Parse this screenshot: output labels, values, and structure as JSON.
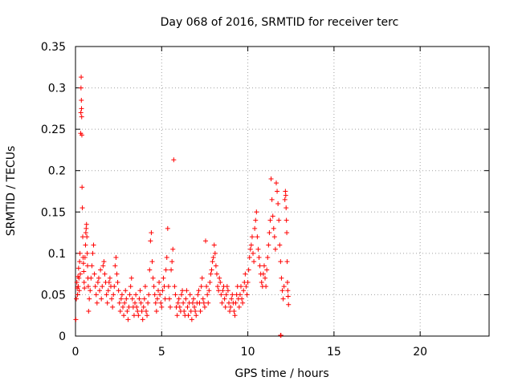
{
  "chart_data": {
    "type": "scatter",
    "title": "Day 068 of 2016, SRMTID for receiver terc",
    "xlabel": "GPS time / hours",
    "ylabel": "SRMTID / TECUs",
    "xlim": [
      0,
      24
    ],
    "ylim": [
      0,
      0.35
    ],
    "grid": true,
    "x_ticks": [
      0,
      5,
      10,
      15,
      20
    ],
    "x_tick_labels": [
      "0",
      "5",
      "10",
      "15",
      "20"
    ],
    "y_ticks": [
      0,
      0.05,
      0.1,
      0.15,
      0.2,
      0.25,
      0.3,
      0.35
    ],
    "y_tick_labels": [
      "0",
      "0.05",
      "0.1",
      "0.15",
      "0.2",
      "0.25",
      "0.3",
      "0.35"
    ],
    "marker": "+",
    "series": [
      {
        "name": "SRMTID",
        "color": "#ff0000",
        "points": [
          [
            0.02,
            0.02
          ],
          [
            0.05,
            0.045
          ],
          [
            0.08,
            0.065
          ],
          [
            0.1,
            0.058
          ],
          [
            0.12,
            0.05
          ],
          [
            0.14,
            0.072
          ],
          [
            0.16,
            0.06
          ],
          [
            0.18,
            0.082
          ],
          [
            0.2,
            0.07
          ],
          [
            0.22,
            0.055
          ],
          [
            0.24,
            0.09
          ],
          [
            0.26,
            0.1
          ],
          [
            0.28,
            0.075
          ],
          [
            0.3,
            0.245
          ],
          [
            0.31,
            0.27
          ],
          [
            0.32,
            0.3
          ],
          [
            0.33,
            0.313
          ],
          [
            0.34,
            0.285
          ],
          [
            0.35,
            0.275
          ],
          [
            0.36,
            0.265
          ],
          [
            0.37,
            0.243
          ],
          [
            0.38,
            0.18
          ],
          [
            0.4,
            0.155
          ],
          [
            0.42,
            0.12
          ],
          [
            0.44,
            0.095
          ],
          [
            0.46,
            0.088
          ],
          [
            0.48,
            0.078
          ],
          [
            0.5,
            0.065
          ],
          [
            0.52,
            0.058
          ],
          [
            0.55,
            0.095
          ],
          [
            0.58,
            0.11
          ],
          [
            0.6,
            0.125
          ],
          [
            0.62,
            0.13
          ],
          [
            0.64,
            0.135
          ],
          [
            0.66,
            0.12
          ],
          [
            0.68,
            0.1
          ],
          [
            0.7,
            0.085
          ],
          [
            0.72,
            0.07
          ],
          [
            0.74,
            0.06
          ],
          [
            0.76,
            0.03
          ],
          [
            0.8,
            0.045
          ],
          [
            0.85,
            0.055
          ],
          [
            0.9,
            0.07
          ],
          [
            0.95,
            0.085
          ],
          [
            1.0,
            0.1
          ],
          [
            1.05,
            0.11
          ],
          [
            1.1,
            0.075
          ],
          [
            1.15,
            0.06
          ],
          [
            1.2,
            0.05
          ],
          [
            1.25,
            0.04
          ],
          [
            1.3,
            0.065
          ],
          [
            1.35,
            0.07
          ],
          [
            1.4,
            0.055
          ],
          [
            1.45,
            0.08
          ],
          [
            1.5,
            0.045
          ],
          [
            1.55,
            0.06
          ],
          [
            1.6,
            0.085
          ],
          [
            1.65,
            0.09
          ],
          [
            1.7,
            0.075
          ],
          [
            1.75,
            0.065
          ],
          [
            1.8,
            0.05
          ],
          [
            1.85,
            0.04
          ],
          [
            1.9,
            0.055
          ],
          [
            1.95,
            0.065
          ],
          [
            2.0,
            0.07
          ],
          [
            2.05,
            0.06
          ],
          [
            2.1,
            0.045
          ],
          [
            2.15,
            0.035
          ],
          [
            2.2,
            0.05
          ],
          [
            2.25,
            0.06
          ],
          [
            2.3,
            0.085
          ],
          [
            2.35,
            0.095
          ],
          [
            2.4,
            0.075
          ],
          [
            2.45,
            0.065
          ],
          [
            2.5,
            0.055
          ],
          [
            2.55,
            0.04
          ],
          [
            2.6,
            0.03
          ],
          [
            2.65,
            0.045
          ],
          [
            2.7,
            0.05
          ],
          [
            2.75,
            0.035
          ],
          [
            2.8,
            0.025
          ],
          [
            2.85,
            0.04
          ],
          [
            2.9,
            0.055
          ],
          [
            2.95,
            0.045
          ],
          [
            3.0,
            0.03
          ],
          [
            3.05,
            0.02
          ],
          [
            3.1,
            0.035
          ],
          [
            3.15,
            0.05
          ],
          [
            3.2,
            0.06
          ],
          [
            3.25,
            0.07
          ],
          [
            3.3,
            0.045
          ],
          [
            3.35,
            0.035
          ],
          [
            3.4,
            0.025
          ],
          [
            3.45,
            0.04
          ],
          [
            3.5,
            0.05
          ],
          [
            3.55,
            0.035
          ],
          [
            3.6,
            0.03
          ],
          [
            3.65,
            0.025
          ],
          [
            3.7,
            0.045
          ],
          [
            3.75,
            0.055
          ],
          [
            3.8,
            0.04
          ],
          [
            3.85,
            0.03
          ],
          [
            3.9,
            0.02
          ],
          [
            3.95,
            0.035
          ],
          [
            4.0,
            0.045
          ],
          [
            4.05,
            0.06
          ],
          [
            4.1,
            0.03
          ],
          [
            4.15,
            0.025
          ],
          [
            4.2,
            0.04
          ],
          [
            4.25,
            0.05
          ],
          [
            4.3,
            0.08
          ],
          [
            4.35,
            0.115
          ],
          [
            4.4,
            0.125
          ],
          [
            4.45,
            0.09
          ],
          [
            4.5,
            0.07
          ],
          [
            4.55,
            0.06
          ],
          [
            4.6,
            0.05
          ],
          [
            4.65,
            0.04
          ],
          [
            4.7,
            0.03
          ],
          [
            4.75,
            0.045
          ],
          [
            4.8,
            0.055
          ],
          [
            4.85,
            0.065
          ],
          [
            4.9,
            0.05
          ],
          [
            4.95,
            0.04
          ],
          [
            5.0,
            0.035
          ],
          [
            5.05,
            0.055
          ],
          [
            5.1,
            0.07
          ],
          [
            5.15,
            0.06
          ],
          [
            5.2,
            0.045
          ],
          [
            5.25,
            0.08
          ],
          [
            5.3,
            0.095
          ],
          [
            5.35,
            0.13
          ],
          [
            5.4,
            0.06
          ],
          [
            5.45,
            0.045
          ],
          [
            5.5,
            0.035
          ],
          [
            5.55,
            0.08
          ],
          [
            5.6,
            0.09
          ],
          [
            5.65,
            0.105
          ],
          [
            5.7,
            0.213
          ],
          [
            5.75,
            0.06
          ],
          [
            5.8,
            0.05
          ],
          [
            5.85,
            0.035
          ],
          [
            5.9,
            0.025
          ],
          [
            5.95,
            0.04
          ],
          [
            6.0,
            0.045
          ],
          [
            6.05,
            0.035
          ],
          [
            6.1,
            0.03
          ],
          [
            6.15,
            0.05
          ],
          [
            6.2,
            0.055
          ],
          [
            6.25,
            0.04
          ],
          [
            6.3,
            0.03
          ],
          [
            6.35,
            0.025
          ],
          [
            6.4,
            0.045
          ],
          [
            6.45,
            0.055
          ],
          [
            6.5,
            0.035
          ],
          [
            6.55,
            0.025
          ],
          [
            6.6,
            0.04
          ],
          [
            6.65,
            0.05
          ],
          [
            6.7,
            0.03
          ],
          [
            6.75,
            0.02
          ],
          [
            6.8,
            0.04
          ],
          [
            6.85,
            0.045
          ],
          [
            6.9,
            0.035
          ],
          [
            6.95,
            0.03
          ],
          [
            7.0,
            0.025
          ],
          [
            7.05,
            0.04
          ],
          [
            7.1,
            0.05
          ],
          [
            7.15,
            0.055
          ],
          [
            7.2,
            0.04
          ],
          [
            7.25,
            0.03
          ],
          [
            7.3,
            0.06
          ],
          [
            7.35,
            0.07
          ],
          [
            7.4,
            0.045
          ],
          [
            7.45,
            0.04
          ],
          [
            7.5,
            0.035
          ],
          [
            7.55,
            0.115
          ],
          [
            7.6,
            0.06
          ],
          [
            7.65,
            0.05
          ],
          [
            7.7,
            0.04
          ],
          [
            7.75,
            0.055
          ],
          [
            7.8,
            0.065
          ],
          [
            7.85,
            0.075
          ],
          [
            7.9,
            0.08
          ],
          [
            7.95,
            0.09
          ],
          [
            8.0,
            0.095
          ],
          [
            8.05,
            0.11
          ],
          [
            8.1,
            0.1
          ],
          [
            8.15,
            0.085
          ],
          [
            8.2,
            0.075
          ],
          [
            8.25,
            0.06
          ],
          [
            8.3,
            0.055
          ],
          [
            8.35,
            0.07
          ],
          [
            8.4,
            0.065
          ],
          [
            8.45,
            0.05
          ],
          [
            8.5,
            0.04
          ],
          [
            8.55,
            0.055
          ],
          [
            8.6,
            0.06
          ],
          [
            8.65,
            0.045
          ],
          [
            8.7,
            0.035
          ],
          [
            8.75,
            0.05
          ],
          [
            8.8,
            0.06
          ],
          [
            8.85,
            0.055
          ],
          [
            8.9,
            0.04
          ],
          [
            8.95,
            0.03
          ],
          [
            9.0,
            0.035
          ],
          [
            9.05,
            0.045
          ],
          [
            9.1,
            0.05
          ],
          [
            9.15,
            0.04
          ],
          [
            9.2,
            0.03
          ],
          [
            9.25,
            0.025
          ],
          [
            9.3,
            0.04
          ],
          [
            9.35,
            0.05
          ],
          [
            9.4,
            0.06
          ],
          [
            9.45,
            0.045
          ],
          [
            9.5,
            0.035
          ],
          [
            9.55,
            0.05
          ],
          [
            9.6,
            0.06
          ],
          [
            9.65,
            0.045
          ],
          [
            9.7,
            0.04
          ],
          [
            9.75,
            0.055
          ],
          [
            9.8,
            0.065
          ],
          [
            9.85,
            0.075
          ],
          [
            9.9,
            0.06
          ],
          [
            9.95,
            0.05
          ],
          [
            10.0,
            0.065
          ],
          [
            10.05,
            0.08
          ],
          [
            10.1,
            0.095
          ],
          [
            10.15,
            0.105
          ],
          [
            10.2,
            0.11
          ],
          [
            10.25,
            0.12
          ],
          [
            10.3,
            0.1
          ],
          [
            10.35,
            0.09
          ],
          [
            10.4,
            0.13
          ],
          [
            10.45,
            0.14
          ],
          [
            10.5,
            0.15
          ],
          [
            10.55,
            0.12
          ],
          [
            10.6,
            0.105
          ],
          [
            10.65,
            0.095
          ],
          [
            10.7,
            0.085
          ],
          [
            10.75,
            0.075
          ],
          [
            10.8,
            0.065
          ],
          [
            10.85,
            0.06
          ],
          [
            10.9,
            0.075
          ],
          [
            10.95,
            0.085
          ],
          [
            11.0,
            0.07
          ],
          [
            11.05,
            0.06
          ],
          [
            11.1,
            0.08
          ],
          [
            11.15,
            0.095
          ],
          [
            11.2,
            0.11
          ],
          [
            11.25,
            0.125
          ],
          [
            11.3,
            0.14
          ],
          [
            11.35,
            0.19
          ],
          [
            11.4,
            0.165
          ],
          [
            11.45,
            0.145
          ],
          [
            11.5,
            0.13
          ],
          [
            11.55,
            0.12
          ],
          [
            11.6,
            0.105
          ],
          [
            11.65,
            0.185
          ],
          [
            11.7,
            0.175
          ],
          [
            11.75,
            0.16
          ],
          [
            11.8,
            0.14
          ],
          [
            11.85,
            0.11
          ],
          [
            11.9,
            0.09
          ],
          [
            11.95,
            0.07
          ],
          [
            12.0,
            0.055
          ],
          [
            12.05,
            0.045
          ],
          [
            12.1,
            0.06
          ],
          [
            12.15,
            0.165
          ],
          [
            12.18,
            0.175
          ],
          [
            12.2,
            0.17
          ],
          [
            12.22,
            0.155
          ],
          [
            12.24,
            0.14
          ],
          [
            12.26,
            0.125
          ],
          [
            12.28,
            0.09
          ],
          [
            12.3,
            0.065
          ],
          [
            12.32,
            0.055
          ],
          [
            12.34,
            0.048
          ],
          [
            12.36,
            0.038
          ],
          [
            11.9,
            0.001
          ],
          [
            11.92,
            0.001
          ]
        ]
      }
    ]
  }
}
